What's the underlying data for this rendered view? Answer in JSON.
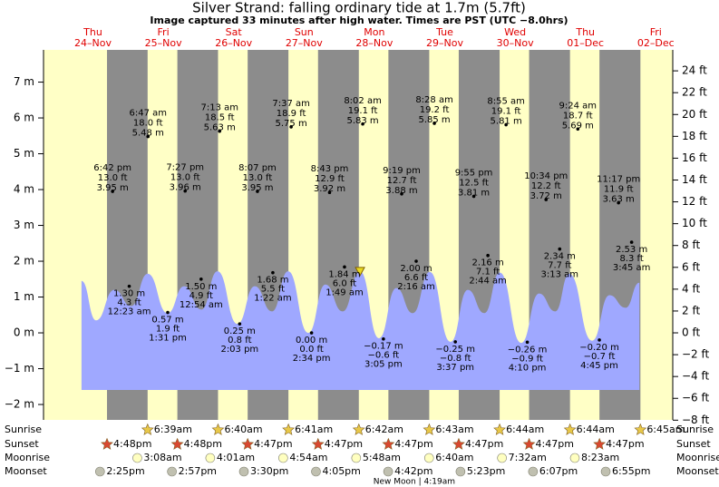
{
  "chart_data": {
    "type": "tide",
    "title": "Silver Strand: falling  ordinary tide at 1.7m (5.7ft)",
    "subtitle": "Image captured 33 minutes after high water. Times are PST (UTC −8.0hrs)",
    "current_m": 1.7,
    "ylim": [
      -2.45,
      7.9
    ],
    "yticks": [
      {
        "value": -2,
        "label": "−2 m"
      },
      {
        "value": -1,
        "label": "−1 m"
      },
      {
        "value": 0,
        "label": "0 m"
      },
      {
        "value": 1,
        "label": "1 m"
      },
      {
        "value": 2,
        "label": "2 m"
      },
      {
        "value": 3,
        "label": "3 m"
      },
      {
        "value": 4,
        "label": "4 m"
      },
      {
        "value": 5,
        "label": "5 m"
      },
      {
        "value": 6,
        "label": "6 m"
      },
      {
        "value": 7,
        "label": "7 m"
      }
    ],
    "y2lim": [
      -8.04,
      25.92
    ],
    "y2ticks": [
      {
        "value": -8,
        "label": "−8 ft"
      },
      {
        "value": -6,
        "label": "−6 ft"
      },
      {
        "value": -4,
        "label": "−4 ft"
      },
      {
        "value": -2,
        "label": "−2 ft"
      },
      {
        "value": 0,
        "label": "0 ft"
      },
      {
        "value": 2,
        "label": "2 ft"
      },
      {
        "value": 4,
        "label": "4 ft"
      },
      {
        "value": 6,
        "label": "6 ft"
      },
      {
        "value": 8,
        "label": "8 ft"
      },
      {
        "value": 10,
        "label": "10 ft"
      },
      {
        "value": 12,
        "label": "12 ft"
      },
      {
        "value": 14,
        "label": "14 ft"
      },
      {
        "value": 16,
        "label": "16 ft"
      },
      {
        "value": 18,
        "label": "18 ft"
      },
      {
        "value": 20,
        "label": "20 ft"
      },
      {
        "value": 22,
        "label": "22 ft"
      },
      {
        "value": 24,
        "label": "24 ft"
      }
    ],
    "row_labels": [
      "Sunrise",
      "Sunset",
      "Moonrise",
      "Moonset"
    ],
    "colors": {
      "day": "#ffffc6",
      "night": "#8c8c8c",
      "water": "#9fa8ff",
      "sunrise": "#e8c848",
      "sunset": "#d84830",
      "moonrise": "#ffffc0",
      "moonset": "#c0c0b0",
      "marker": "#e8d820"
    },
    "wave": {
      "x": [
        8.1,
        13.1,
        19.3,
        25.1,
        30.7,
        37.5,
        43.1,
        49.0,
        54.5,
        61.3,
        67.2,
        73.1,
        78.6,
        85.5,
        91.3,
        97.2,
        103.1,
        109.6,
        115.5,
        121.1,
        126.9,
        134.0,
        139.9,
        145.5,
        150.8,
        158.1,
        164.2,
        169.7,
        174.5,
        182.3,
        188.2,
        193.7,
        198.4
      ],
      "values": [
        1.45,
        0.35,
        1.2,
        0.75,
        1.65,
        0.55,
        1.3,
        0.65,
        1.72,
        0.25,
        1.3,
        0.6,
        1.72,
        0.0,
        1.35,
        0.6,
        1.72,
        -0.15,
        1.25,
        0.55,
        1.7,
        -0.25,
        1.2,
        0.55,
        1.68,
        -0.28,
        1.1,
        0.6,
        1.65,
        -0.22,
        1.05,
        0.7,
        1.4
      ]
    },
    "days": [
      {
        "name": "Thu",
        "date": "24–Nov",
        "sunset": "4:48pm",
        "moonset": "2:25pm",
        "extremes": [
          {
            "time": "6:42 pm",
            "height": 3.95,
            "label_ft": "13.0 ft",
            "label_m": "3.95 m"
          }
        ]
      },
      {
        "name": "Fri",
        "date": "25–Nov",
        "sunrise": "6:39am",
        "sunset": "4:48pm",
        "moonrise": "3:08am",
        "moonset": "2:57pm",
        "extremes": [
          {
            "time": "12:23 am",
            "height": 1.3,
            "label_ft": "4.3 ft",
            "label_m": "1.30 m"
          },
          {
            "time": "6:47 am",
            "height": 5.48,
            "label_ft": "18.0 ft",
            "label_m": "5.48 m"
          },
          {
            "time": "1:31 pm",
            "height": 0.57,
            "label_ft": "1.9 ft",
            "label_m": "0.57 m"
          },
          {
            "time": "7:27 pm",
            "height": 3.96,
            "label_ft": "13.0 ft",
            "label_m": "3.96 m"
          }
        ]
      },
      {
        "name": "Sat",
        "date": "26–Nov",
        "sunrise": "6:40am",
        "sunset": "4:47pm",
        "moonrise": "4:01am",
        "moonset": "3:30pm",
        "extremes": [
          {
            "time": "12:54 am",
            "height": 1.5,
            "label_ft": "4.9 ft",
            "label_m": "1.50 m"
          },
          {
            "time": "7:13 am",
            "height": 5.63,
            "label_ft": "18.5 ft",
            "label_m": "5.63 m"
          },
          {
            "time": "2:03 pm",
            "height": 0.25,
            "label_ft": "0.8 ft",
            "label_m": "0.25 m"
          },
          {
            "time": "8:07 pm",
            "height": 3.95,
            "label_ft": "13.0 ft",
            "label_m": "3.95 m"
          }
        ]
      },
      {
        "name": "Sun",
        "date": "27–Nov",
        "sunrise": "6:41am",
        "sunset": "4:47pm",
        "moonrise": "4:54am",
        "moonset": "4:05pm",
        "extremes": [
          {
            "time": "1:22 am",
            "height": 1.68,
            "label_ft": "5.5 ft",
            "label_m": "1.68 m"
          },
          {
            "time": "7:37 am",
            "height": 5.75,
            "label_ft": "18.9 ft",
            "label_m": "5.75 m"
          },
          {
            "time": "2:34 pm",
            "height": 0.0,
            "label_ft": "0.0 ft",
            "label_m": "0.00 m"
          },
          {
            "time": "8:43 pm",
            "height": 3.92,
            "label_ft": "12.9 ft",
            "label_m": "3.92 m"
          }
        ]
      },
      {
        "name": "Mon",
        "date": "28–Nov",
        "sunrise": "6:42am",
        "sunset": "4:47pm",
        "moonrise": "5:48am",
        "moonset": "4:42pm",
        "moon_phase": "New Moon | 4:19am",
        "extremes": [
          {
            "time": "1:49 am",
            "height": 1.84,
            "label_ft": "6.0 ft",
            "label_m": "1.84 m"
          },
          {
            "time": "8:02 am",
            "height": 5.83,
            "label_ft": "19.1 ft",
            "label_m": "5.83 m"
          },
          {
            "time": "3:05 pm",
            "height": -0.17,
            "label_ft": "−0.6 ft",
            "label_m": "−0.17 m"
          },
          {
            "time": "9:19 pm",
            "height": 3.88,
            "label_ft": "12.7 ft",
            "label_m": "3.88 m"
          }
        ]
      },
      {
        "name": "Tue",
        "date": "29–Nov",
        "sunrise": "6:43am",
        "sunset": "4:47pm",
        "moonrise": "6:40am",
        "moonset": "5:23pm",
        "extremes": [
          {
            "time": "2:16 am",
            "height": 2.0,
            "label_ft": "6.6 ft",
            "label_m": "2.00 m"
          },
          {
            "time": "8:28 am",
            "height": 5.85,
            "label_ft": "19.2 ft",
            "label_m": "5.85 m"
          },
          {
            "time": "3:37 pm",
            "height": -0.25,
            "label_ft": "−0.8 ft",
            "label_m": "−0.25 m"
          },
          {
            "time": "9:55 pm",
            "height": 3.81,
            "label_ft": "12.5 ft",
            "label_m": "3.81 m"
          }
        ]
      },
      {
        "name": "Wed",
        "date": "30–Nov",
        "sunrise": "6:44am",
        "sunset": "4:47pm",
        "moonrise": "7:32am",
        "moonset": "6:07pm",
        "extremes": [
          {
            "time": "2:44 am",
            "height": 2.16,
            "label_ft": "7.1 ft",
            "label_m": "2.16 m"
          },
          {
            "time": "8:55 am",
            "height": 5.81,
            "label_ft": "19.1 ft",
            "label_m": "5.81 m"
          },
          {
            "time": "4:10 pm",
            "height": -0.26,
            "label_ft": "−0.9 ft",
            "label_m": "−0.26 m"
          },
          {
            "time": "10:34 pm",
            "height": 3.72,
            "label_ft": "12.2 ft",
            "label_m": "3.72 m"
          }
        ]
      },
      {
        "name": "Thu",
        "date": "01–Dec",
        "sunrise": "6:44am",
        "sunset": "4:47pm",
        "moonrise": "8:23am",
        "moonset": "6:55pm",
        "extremes": [
          {
            "time": "3:13 am",
            "height": 2.34,
            "label_ft": "7.7 ft",
            "label_m": "2.34 m"
          },
          {
            "time": "9:24 am",
            "height": 5.69,
            "label_ft": "18.7 ft",
            "label_m": "5.69 m"
          },
          {
            "time": "4:45 pm",
            "height": -0.2,
            "label_ft": "−0.7 ft",
            "label_m": "−0.20 m"
          },
          {
            "time": "11:17 pm",
            "height": 3.63,
            "label_ft": "11.9 ft",
            "label_m": "3.63 m"
          }
        ]
      },
      {
        "name": "Fri",
        "date": "02–Dec",
        "sunrise": "6:45am",
        "extremes": [
          {
            "time": "3:45 am",
            "height": 2.53,
            "label_ft": "8.3 ft",
            "label_m": "2.53 m"
          }
        ]
      }
    ]
  }
}
